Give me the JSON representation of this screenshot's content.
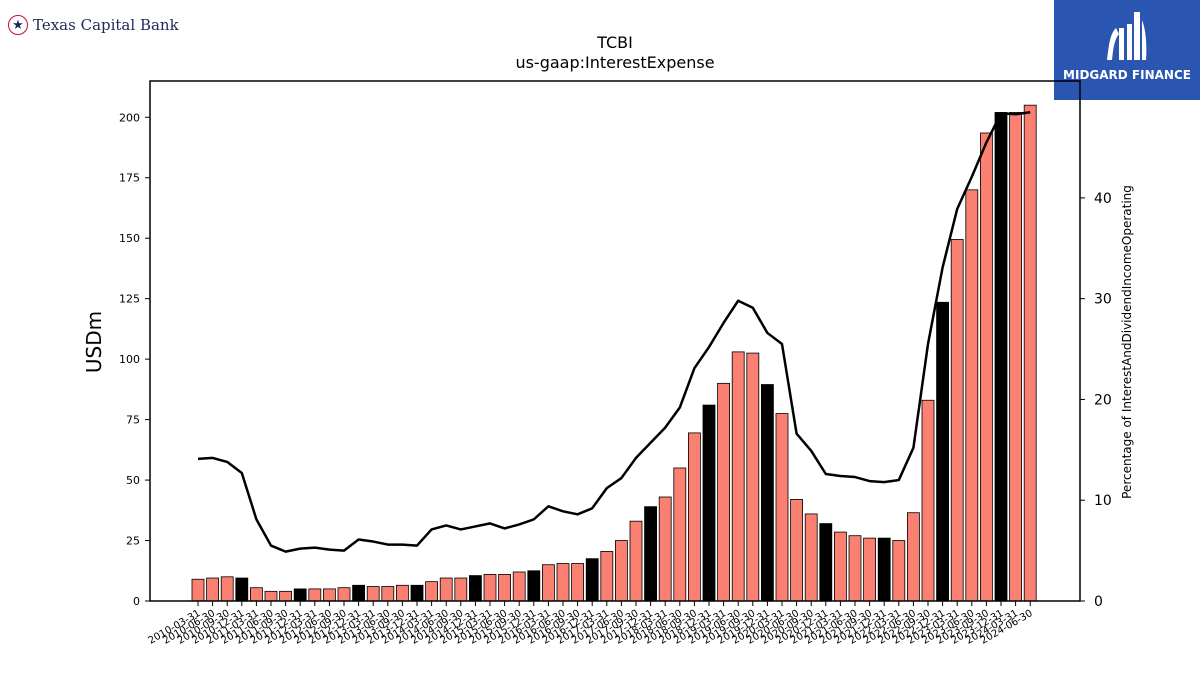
{
  "branding": {
    "left_logo_text": "Texas Capital Bank",
    "right_logo_text": "MIDGARD FINANCE",
    "right_logo_bg": "#2a55b0"
  },
  "chart_data": {
    "type": "bar",
    "title": "TCBI",
    "subtitle": "us-gaap:InterestExpense",
    "ylabel": "USDm",
    "y2label": "Percentage of InterestAndDividendIncomeOperating",
    "ylim": [
      0,
      215
    ],
    "y2lim": [
      0,
      51.6
    ],
    "yticks": [
      0,
      25,
      50,
      75,
      100,
      125,
      150,
      175,
      200
    ],
    "y2ticks": [
      0,
      10,
      20,
      30,
      40
    ],
    "colors": {
      "bar": "#fa8072",
      "bar_q4": "#000000",
      "line": "#000000"
    },
    "categories": [
      "2010-03-31",
      "2010-06-30",
      "2010-09-30",
      "2010-12-31",
      "2011-03-31",
      "2011-06-30",
      "2011-09-30",
      "2011-12-31",
      "2012-03-31",
      "2012-06-30",
      "2012-09-30",
      "2012-12-31",
      "2013-03-31",
      "2013-06-30",
      "2013-09-30",
      "2013-12-31",
      "2014-03-31",
      "2014-06-30",
      "2014-09-30",
      "2014-12-31",
      "2015-03-31",
      "2015-06-30",
      "2015-09-30",
      "2015-12-31",
      "2016-03-31",
      "2016-06-30",
      "2016-09-30",
      "2016-12-31",
      "2017-03-31",
      "2017-06-30",
      "2017-09-30",
      "2017-12-31",
      "2018-03-31",
      "2018-06-30",
      "2018-09-30",
      "2018-12-31",
      "2019-03-31",
      "2019-06-30",
      "2019-09-30",
      "2019-12-31",
      "2020-03-31",
      "2020-06-30",
      "2020-09-30",
      "2020-12-31",
      "2021-03-31",
      "2021-06-30",
      "2021-09-30",
      "2021-12-31",
      "2022-03-31",
      "2022-06-30",
      "2022-09-30",
      "2022-12-31",
      "2023-03-31",
      "2023-06-30",
      "2023-09-30",
      "2023-12-31",
      "2024-03-31",
      "2024-06-30"
    ],
    "series": [
      {
        "kind": "bar",
        "values": [
          9,
          9.5,
          10,
          9.5,
          5.5,
          4,
          4,
          5,
          5,
          5,
          5.5,
          6.5,
          6,
          6,
          6.5,
          6.5,
          8,
          9.5,
          9.5,
          10.5,
          11,
          11,
          12,
          12.5,
          15,
          15.5,
          15.5,
          17.5,
          20.5,
          25,
          33,
          39,
          43,
          55,
          69.5,
          81,
          90,
          103,
          102.5,
          89.5,
          77.5,
          42,
          36,
          32,
          28.5,
          27,
          26,
          26,
          25,
          36.5,
          83,
          123.5,
          149.5,
          170,
          193.5,
          202,
          202,
          205
        ]
      },
      {
        "kind": "line",
        "axis": "right",
        "values": [
          14.1,
          14.2,
          13.8,
          12.7,
          8.1,
          5.5,
          4.9,
          5.2,
          5.3,
          5.1,
          5.0,
          6.1,
          5.9,
          5.6,
          5.6,
          5.5,
          7.1,
          7.5,
          7.1,
          7.4,
          7.7,
          7.2,
          7.6,
          8.1,
          9.4,
          8.9,
          8.6,
          9.2,
          11.2,
          12.2,
          14.2,
          15.7,
          17.2,
          19.2,
          23.1,
          25.2,
          27.6,
          29.8,
          29.1,
          26.6,
          25.5,
          16.6,
          14.9,
          12.6,
          12.4,
          12.3,
          11.9,
          11.8,
          12.0,
          15.2,
          25.5,
          33.1,
          38.9,
          42.1,
          45.5,
          48.4,
          48.3,
          48.5
        ]
      }
    ]
  }
}
